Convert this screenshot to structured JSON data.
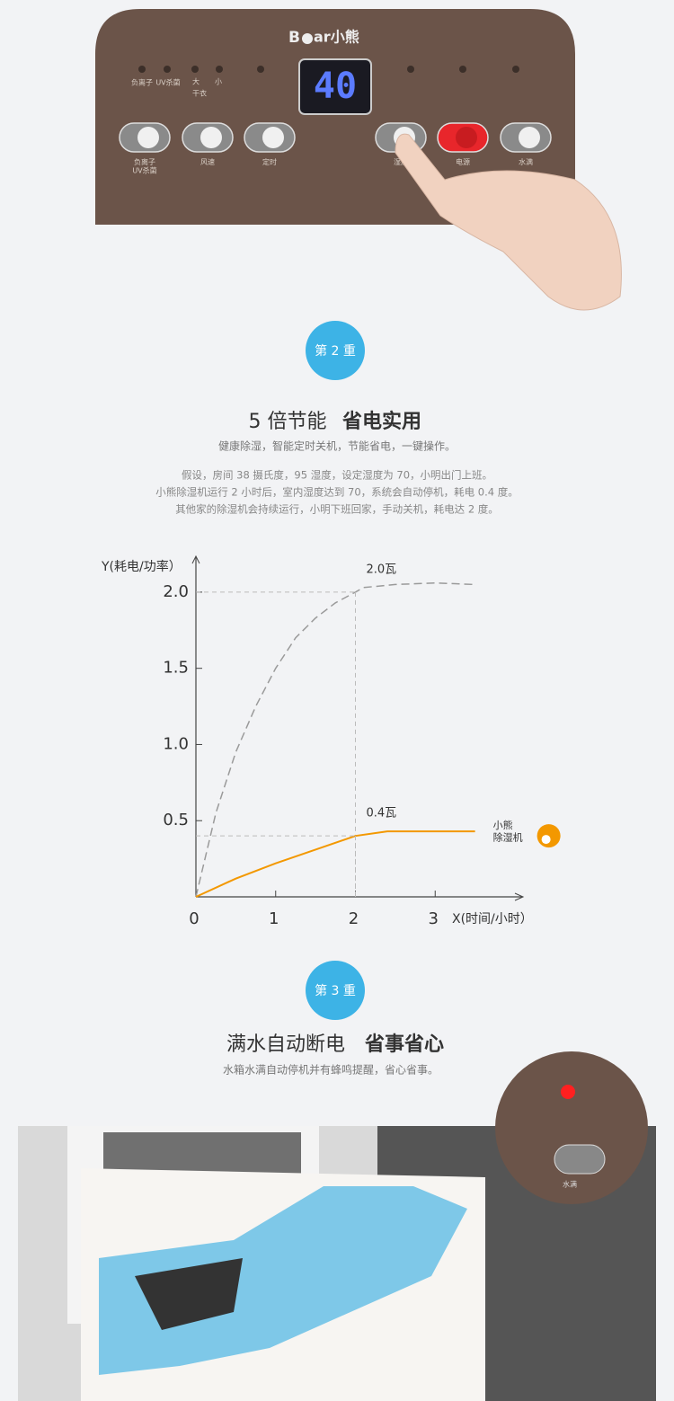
{
  "panel": {
    "logo_left": "B",
    "logo_right": "ar小熊",
    "indicators": [
      "负离子",
      "UV杀菌",
      "大",
      "干衣",
      "小"
    ],
    "display": "40",
    "buttons": [
      "负离子\nUV杀菌",
      "风速",
      "定时",
      "湿度",
      "电源",
      "水满"
    ]
  },
  "section2": {
    "badge": "第 2 重",
    "title_plain": "5 倍节能",
    "title_bold": "省电实用",
    "subtitle": "健康除湿，智能定时关机，节能省电，一键操作。",
    "paragraph": [
      "假设，房间 38 摄氏度，95 湿度，设定湿度为 70，小明出门上班。",
      "小熊除湿机运行 2 小时后，室内湿度达到 70，系统会自动停机，耗电 0.4 度。",
      "其他家的除湿机会持续运行，小明下班回家，手动关机，耗电达 2 度。"
    ]
  },
  "chart_data": {
    "type": "line",
    "y_label": "Y(耗电/功率）",
    "x_label": "X(时间/小时）",
    "xlim": [
      0,
      4
    ],
    "ylim": [
      0,
      2.2
    ],
    "xticks": [
      0,
      1,
      2,
      3
    ],
    "yticks": [
      0.5,
      {
        "value": 1,
        "label": "1.0"
      },
      1.5,
      {
        "value": 2,
        "label": "2.0"
      }
    ],
    "series": [
      {
        "color": "#9a9a9a",
        "dashed": true,
        "annotation": "2.0瓦",
        "x": [
          0,
          0.25,
          0.5,
          0.75,
          1,
          1.25,
          1.5,
          1.75,
          2,
          2.1,
          2.5,
          3,
          3.5
        ],
        "values": [
          0,
          0.55,
          0.95,
          1.25,
          1.5,
          1.7,
          1.83,
          1.93,
          2.0,
          2.03,
          2.05,
          2.06,
          2.05
        ]
      },
      {
        "name": "小熊\n除湿机",
        "color": "#f39800",
        "dashed": false,
        "annotation": "0.4瓦",
        "x": [
          0,
          0.5,
          1,
          1.5,
          2,
          2.4,
          3,
          3.5
        ],
        "values": [
          0,
          0.12,
          0.22,
          0.31,
          0.4,
          0.43,
          0.43,
          0.43
        ]
      }
    ],
    "guide_index": [
      8,
      4
    ]
  },
  "section3": {
    "badge": "第 3 重",
    "title_plain": "满水自动断电",
    "title_bold": "省事省心",
    "subtitle": "水箱水满自动停机并有蜂鸣提醒，省心省事。",
    "inset_label": "水满"
  }
}
